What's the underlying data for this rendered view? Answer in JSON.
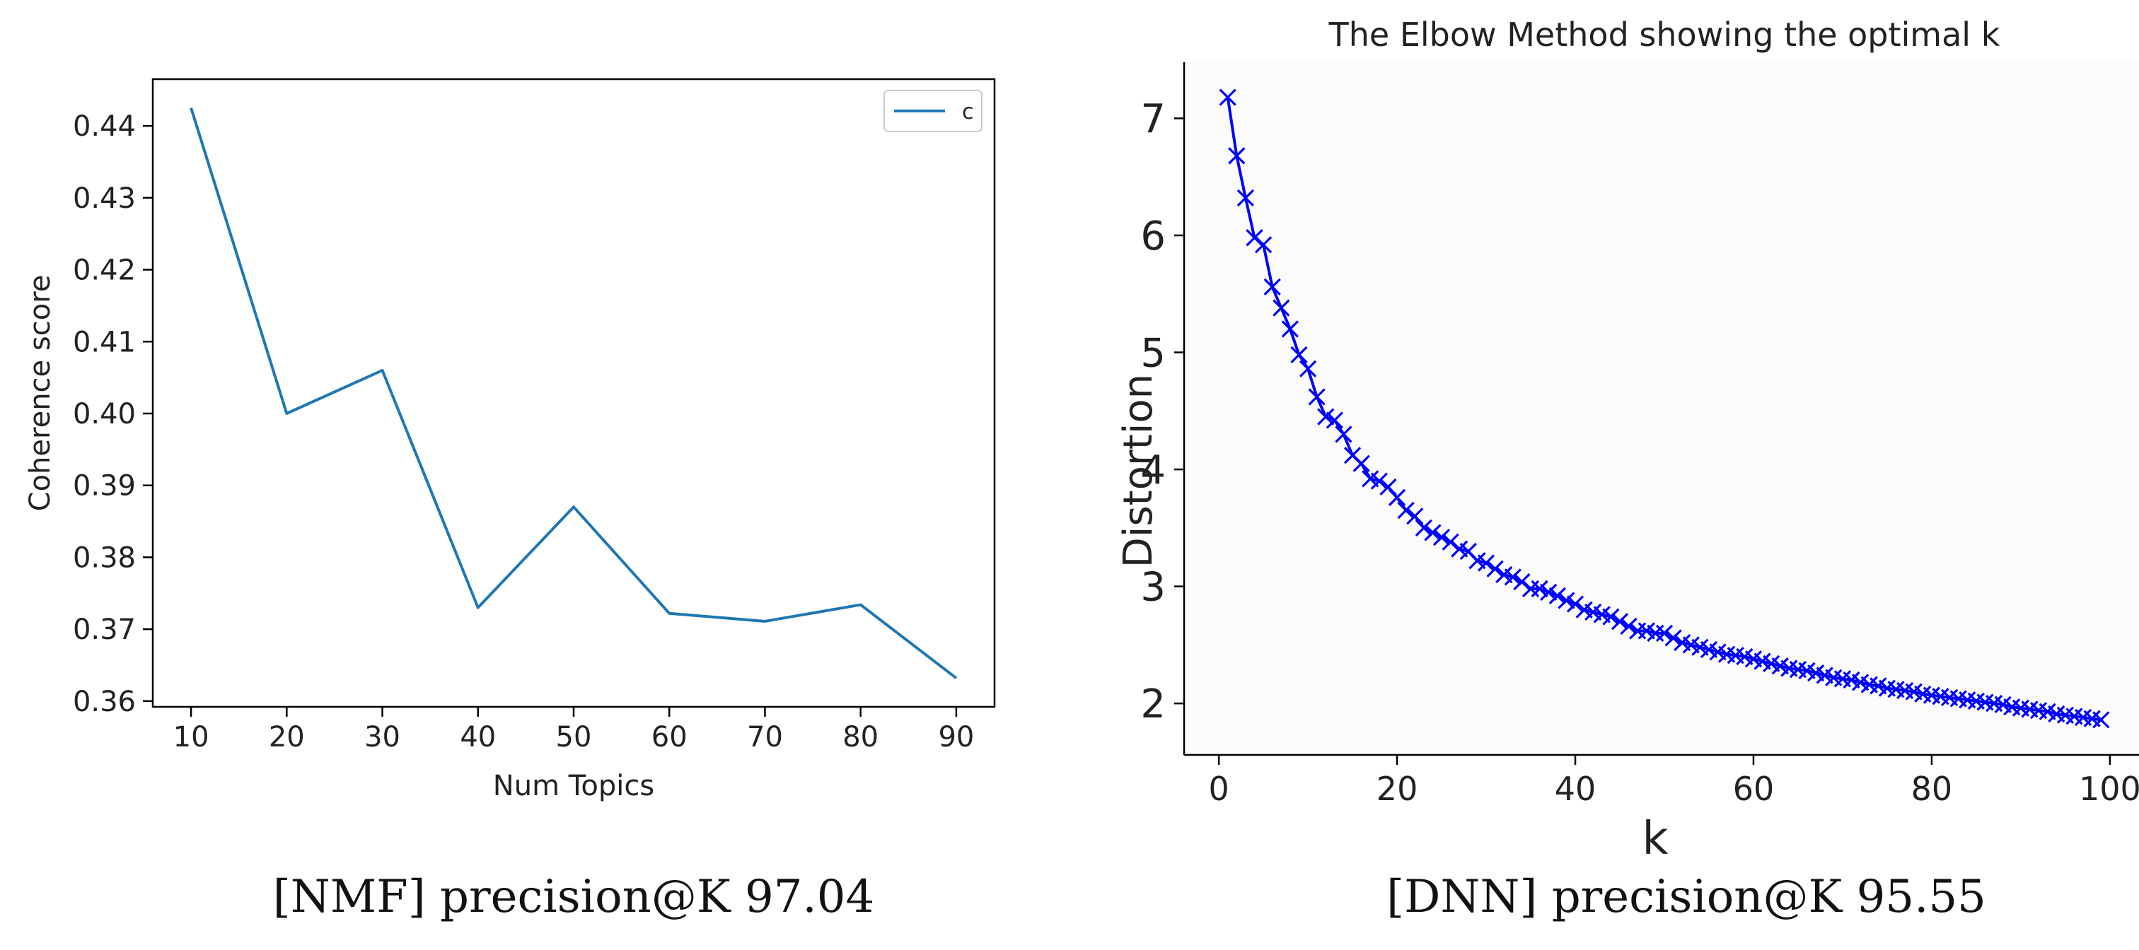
{
  "chart_data": [
    {
      "type": "line",
      "title": "",
      "xlabel": "Num Topics",
      "ylabel": "Coherence score",
      "x": [
        10,
        20,
        30,
        40,
        50,
        60,
        70,
        80,
        90
      ],
      "series": [
        {
          "name": "c",
          "values": [
            0.4425,
            0.4,
            0.406,
            0.373,
            0.387,
            0.3722,
            0.3711,
            0.3734,
            0.3632
          ],
          "color": "#1f77b4"
        }
      ],
      "xlim": [
        6,
        94
      ],
      "ylim": [
        0.3592,
        0.4465
      ],
      "xticks": [
        10,
        20,
        30,
        40,
        50,
        60,
        70,
        80,
        90
      ],
      "yticks": [
        0.36,
        0.37,
        0.38,
        0.39,
        0.4,
        0.41,
        0.42,
        0.43,
        0.44
      ],
      "ytick_labels": [
        "0.36",
        "0.37",
        "0.38",
        "0.39",
        "0.40",
        "0.41",
        "0.42",
        "0.43",
        "0.44"
      ],
      "legend": {
        "position": "top-right",
        "entries": [
          "c"
        ]
      },
      "grid": false,
      "caption": "[NMF] precision@K 97.04"
    },
    {
      "type": "line",
      "title": "The Elbow Method showing the optimal k",
      "xlabel": "k",
      "ylabel": "Distortion",
      "x": [
        1,
        2,
        3,
        4,
        5,
        6,
        7,
        8,
        9,
        10,
        11,
        12,
        13,
        14,
        15,
        16,
        17,
        18,
        19,
        20,
        21,
        22,
        23,
        24,
        25,
        26,
        27,
        28,
        29,
        30,
        31,
        32,
        33,
        34,
        35,
        36,
        37,
        38,
        39,
        40,
        41,
        42,
        43,
        44,
        45,
        46,
        47,
        48,
        49,
        50,
        51,
        52,
        53,
        54,
        55,
        56,
        57,
        58,
        59,
        60,
        61,
        62,
        63,
        64,
        65,
        66,
        67,
        68,
        69,
        70,
        71,
        72,
        73,
        74,
        75,
        76,
        77,
        78,
        79,
        80,
        81,
        82,
        83,
        84,
        85,
        86,
        87,
        88,
        89,
        90,
        91,
        92,
        93,
        94,
        95,
        96,
        97,
        98,
        99
      ],
      "series": [
        {
          "name": "Distortion",
          "values": [
            7.18,
            6.68,
            6.32,
            5.98,
            5.92,
            5.56,
            5.38,
            5.2,
            4.98,
            4.86,
            4.62,
            4.45,
            4.42,
            4.3,
            4.12,
            4.05,
            3.92,
            3.9,
            3.85,
            3.76,
            3.65,
            3.6,
            3.5,
            3.46,
            3.42,
            3.38,
            3.32,
            3.3,
            3.22,
            3.2,
            3.15,
            3.1,
            3.08,
            3.04,
            2.98,
            2.98,
            2.95,
            2.92,
            2.88,
            2.85,
            2.8,
            2.78,
            2.76,
            2.74,
            2.7,
            2.66,
            2.62,
            2.62,
            2.6,
            2.6,
            2.56,
            2.52,
            2.5,
            2.48,
            2.46,
            2.44,
            2.42,
            2.41,
            2.4,
            2.38,
            2.36,
            2.34,
            2.32,
            2.3,
            2.29,
            2.28,
            2.26,
            2.24,
            2.22,
            2.21,
            2.2,
            2.18,
            2.16,
            2.15,
            2.13,
            2.12,
            2.11,
            2.1,
            2.08,
            2.07,
            2.06,
            2.05,
            2.04,
            2.03,
            2.02,
            2.01,
            2.0,
            1.99,
            1.97,
            1.96,
            1.95,
            1.94,
            1.93,
            1.91,
            1.9,
            1.89,
            1.88,
            1.87,
            1.86
          ],
          "color": "#0000ff",
          "marker": "x"
        }
      ],
      "xlim": [
        -3.9,
        103.9
      ],
      "ylim": [
        1.56,
        7.48
      ],
      "xticks": [
        0,
        20,
        40,
        60,
        80,
        100
      ],
      "yticks": [
        2,
        3,
        4,
        5,
        6,
        7
      ],
      "grid": false,
      "caption": "[DNN] precision@K 95.55"
    }
  ]
}
